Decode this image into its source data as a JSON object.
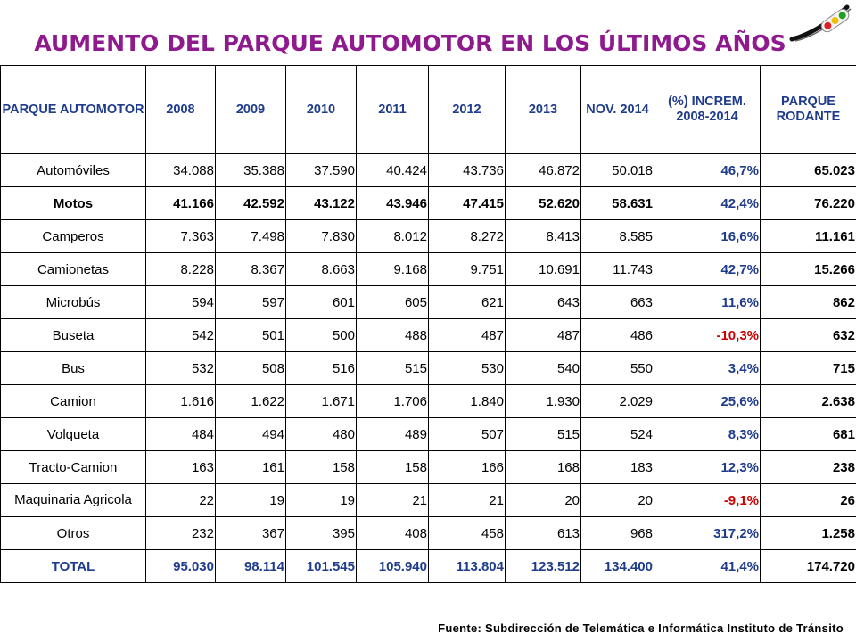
{
  "title": "AUMENTO DEL PARQUE AUTOMOTOR EN LOS ÚLTIMOS AÑOS",
  "headers": [
    "PARQUE AUTOMOTOR",
    "2008",
    "2009",
    "2010",
    "2011",
    "2012",
    "2013",
    "NOV. 2014",
    "(%) INCREM. 2008-2014",
    "PARQUE RODANTE"
  ],
  "rows": [
    {
      "label": "Automóviles",
      "values": [
        "34.088",
        "35.388",
        "37.590",
        "40.424",
        "43.736",
        "46.872",
        "50.018"
      ],
      "pct": "46,7%",
      "rodante": "65.023"
    },
    {
      "label": "Motos",
      "values": [
        "41.166",
        "42.592",
        "43.122",
        "43.946",
        "47.415",
        "52.620",
        "58.631"
      ],
      "pct": "42,4%",
      "rodante": "76.220"
    },
    {
      "label": "Camperos",
      "values": [
        "7.363",
        "7.498",
        "7.830",
        "8.012",
        "8.272",
        "8.413",
        "8.585"
      ],
      "pct": "16,6%",
      "rodante": "11.161"
    },
    {
      "label": "Camionetas",
      "values": [
        "8.228",
        "8.367",
        "8.663",
        "9.168",
        "9.751",
        "10.691",
        "11.743"
      ],
      "pct": "42,7%",
      "rodante": "15.266"
    },
    {
      "label": "Microbús",
      "values": [
        "594",
        "597",
        "601",
        "605",
        "621",
        "643",
        "663"
      ],
      "pct": "11,6%",
      "rodante": "862"
    },
    {
      "label": "Buseta",
      "values": [
        "542",
        "501",
        "500",
        "488",
        "487",
        "487",
        "486"
      ],
      "pct": "-10,3%",
      "rodante": "632"
    },
    {
      "label": "Bus",
      "values": [
        "532",
        "508",
        "516",
        "515",
        "530",
        "540",
        "550"
      ],
      "pct": "3,4%",
      "rodante": "715"
    },
    {
      "label": "Camion",
      "values": [
        "1.616",
        "1.622",
        "1.671",
        "1.706",
        "1.840",
        "1.930",
        "2.029"
      ],
      "pct": "25,6%",
      "rodante": "2.638"
    },
    {
      "label": "Volqueta",
      "values": [
        "484",
        "494",
        "480",
        "489",
        "507",
        "515",
        "524"
      ],
      "pct": "8,3%",
      "rodante": "681"
    },
    {
      "label": "Tracto-Camion",
      "values": [
        "163",
        "161",
        "158",
        "158",
        "166",
        "168",
        "183"
      ],
      "pct": "12,3%",
      "rodante": "238"
    },
    {
      "label": "Maquinaria Agricola",
      "values": [
        "22",
        "19",
        "19",
        "21",
        "21",
        "20",
        "20"
      ],
      "pct": "-9,1%",
      "rodante": "26"
    },
    {
      "label": "Otros",
      "values": [
        "232",
        "367",
        "395",
        "408",
        "458",
        "613",
        "968"
      ],
      "pct": "317,2%",
      "rodante": "1.258"
    },
    {
      "label": "TOTAL",
      "values": [
        "95.030",
        "98.114",
        "101.545",
        "105.940",
        "113.804",
        "123.512",
        "134.400"
      ],
      "pct": "41,4%",
      "rodante": "174.720"
    }
  ],
  "source": "Fuente: Subdirección de Telemática e Informática Instituto de Tránsito",
  "colors": {
    "title": "#8e1a8e",
    "header": "#1f3c8c",
    "negative": "#cc0000"
  }
}
